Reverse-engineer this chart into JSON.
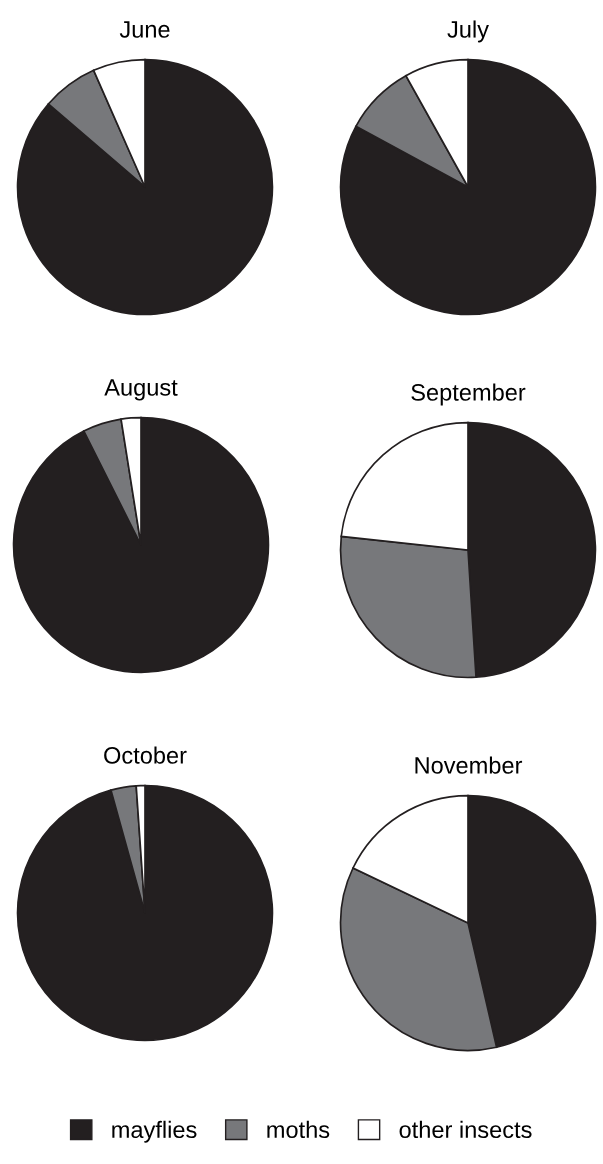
{
  "chart_data": [
    {
      "type": "pie",
      "title": "June",
      "categories": [
        "mayflies",
        "moths",
        "other insects"
      ],
      "values": [
        86.3,
        7.1,
        6.6
      ],
      "colors": [
        "#231f20",
        "#77787b",
        "#ffffff"
      ],
      "legend": "bottom"
    },
    {
      "type": "pie",
      "title": "July",
      "categories": [
        null,
        null,
        null
      ],
      "values": [
        82.9,
        9.0,
        8.1
      ],
      "colors": [
        "#231f20",
        "#77787b",
        "#ffffff"
      ]
    },
    {
      "type": "pie",
      "title": "August",
      "categories": [
        null,
        null,
        null
      ],
      "values": [
        92.6,
        4.9,
        2.5
      ],
      "colors": [
        "#231f20",
        "#77787b",
        "#ffffff"
      ]
    },
    {
      "type": "pie",
      "title": "September",
      "categories": [
        null,
        null,
        null
      ],
      "values": [
        49.0,
        27.7,
        23.3
      ],
      "colors": [
        "#231f20",
        "#77787b",
        "#ffffff"
      ]
    },
    {
      "type": "pie",
      "title": "October",
      "categories": [
        null,
        null,
        null
      ],
      "values": [
        95.7,
        3.2,
        1.1
      ],
      "colors": [
        "#231f20",
        "#77787b",
        "#ffffff"
      ]
    },
    {
      "type": "pie",
      "title": "November",
      "categories": [
        null,
        null,
        null
      ],
      "values": [
        46.4,
        35.7,
        17.9
      ],
      "colors": [
        "#231f20",
        "#77787b",
        "#ffffff"
      ]
    }
  ]
}
